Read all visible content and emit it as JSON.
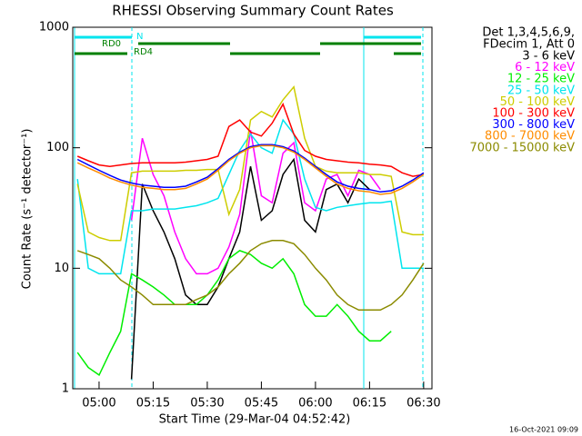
{
  "chart_data": {
    "type": "line",
    "title": "RHESSI Observing Summary Count Rates",
    "xlabel": "Start Time (29-Mar-04 04:52:42)",
    "ylabel": "Count Rate (s⁻¹ detector⁻¹)",
    "legend_header": [
      "Det 1,3,4,5,6,9,",
      "FDecim 1, Att 0"
    ],
    "footer": "16-Oct-2021 09:09",
    "annotations": [
      "RD0",
      "N",
      "RD4"
    ],
    "log_y": true,
    "xlim": [
      292.7,
      392.3
    ],
    "xticks": [
      {
        "value": 300,
        "label": "05:00"
      },
      {
        "value": 315,
        "label": "05:15"
      },
      {
        "value": 330,
        "label": "05:30"
      },
      {
        "value": 345,
        "label": "05:45"
      },
      {
        "value": 360,
        "label": "06:00"
      },
      {
        "value": 375,
        "label": "06:15"
      },
      {
        "value": 390,
        "label": "06:30"
      }
    ],
    "ylim": [
      1,
      1000
    ],
    "yticks": [
      1,
      10,
      100,
      1000
    ],
    "x": [
      294,
      297,
      300,
      303,
      306,
      309,
      312,
      315,
      318,
      321,
      324,
      327,
      330,
      333,
      336,
      339,
      342,
      345,
      348,
      351,
      354,
      357,
      360,
      363,
      366,
      369,
      372,
      375,
      378,
      381,
      384,
      387,
      390
    ],
    "series": [
      {
        "name": "3 - 6 keV",
        "color": "#000000",
        "values": [
          null,
          null,
          null,
          null,
          null,
          1.2,
          50,
          30,
          20,
          12,
          6,
          5,
          5,
          7,
          12,
          20,
          70,
          25,
          30,
          60,
          80,
          25,
          20,
          45,
          50,
          35,
          55,
          45,
          null,
          null,
          null,
          null,
          null
        ]
      },
      {
        "name": "6 - 12 keV",
        "color": "#ff00ff",
        "values": [
          null,
          null,
          null,
          null,
          null,
          25,
          120,
          60,
          40,
          20,
          12,
          9,
          9,
          10,
          15,
          28,
          140,
          40,
          35,
          90,
          110,
          35,
          30,
          55,
          60,
          40,
          65,
          60,
          45,
          null,
          null,
          null,
          null
        ]
      },
      {
        "name": "12 - 25 keV",
        "color": "#00ee00",
        "values": [
          2,
          1.5,
          1.3,
          2,
          3,
          9,
          8,
          7,
          6,
          5,
          5,
          5,
          6,
          8,
          12,
          14,
          13,
          11,
          10,
          12,
          9,
          5,
          4,
          4,
          5,
          4,
          3,
          2.5,
          2.5,
          3,
          null,
          null,
          null
        ]
      },
      {
        "name": "25 - 50 keV",
        "color": "#00e5ee",
        "values": [
          55,
          10,
          9,
          9,
          9,
          30,
          30,
          31,
          31,
          31,
          32,
          33,
          35,
          38,
          60,
          95,
          130,
          100,
          90,
          170,
          130,
          55,
          32,
          30,
          32,
          33,
          34,
          35,
          35,
          36,
          10,
          10,
          10
        ]
      },
      {
        "name": "50 - 100 keV",
        "color": "#cdcd00",
        "values": [
          50,
          20,
          18,
          17,
          17,
          62,
          64,
          64,
          64,
          64,
          65,
          65,
          66,
          66,
          28,
          45,
          170,
          200,
          180,
          250,
          320,
          120,
          70,
          64,
          62,
          62,
          62,
          60,
          60,
          58,
          20,
          19,
          19
        ]
      },
      {
        "name": "100 - 300 keV",
        "color": "#ff0000",
        "values": [
          85,
          78,
          72,
          70,
          72,
          74,
          75,
          75,
          75,
          75,
          76,
          78,
          80,
          85,
          150,
          170,
          135,
          125,
          160,
          230,
          130,
          95,
          85,
          80,
          78,
          76,
          75,
          73,
          72,
          70,
          62,
          58,
          60
        ]
      },
      {
        "name": "300 - 800 keV",
        "color": "#0000ff",
        "values": [
          80,
          72,
          65,
          59,
          54,
          51,
          49,
          48,
          47,
          47,
          48,
          52,
          57,
          67,
          80,
          92,
          102,
          106,
          106,
          102,
          94,
          82,
          70,
          60,
          52,
          48,
          46,
          45,
          43,
          44,
          48,
          54,
          62
        ]
      },
      {
        "name": "800 - 7000 keV",
        "color": "#ff8c00",
        "values": [
          75,
          68,
          62,
          56,
          52,
          49,
          47,
          46,
          45,
          45,
          46,
          50,
          55,
          65,
          78,
          90,
          100,
          104,
          104,
          100,
          92,
          80,
          68,
          58,
          50,
          46,
          44,
          43,
          41,
          42,
          46,
          52,
          60
        ]
      },
      {
        "name": "7000 - 15000 keV",
        "color": "#8b8b00",
        "values": [
          14,
          13,
          12,
          10,
          8,
          7,
          6,
          5,
          5,
          5,
          5,
          5.5,
          6,
          7,
          9,
          11,
          14,
          16,
          17,
          17,
          16,
          13,
          10,
          8,
          6,
          5,
          4.5,
          4.5,
          4.5,
          5,
          6,
          8,
          11
        ]
      }
    ]
  }
}
